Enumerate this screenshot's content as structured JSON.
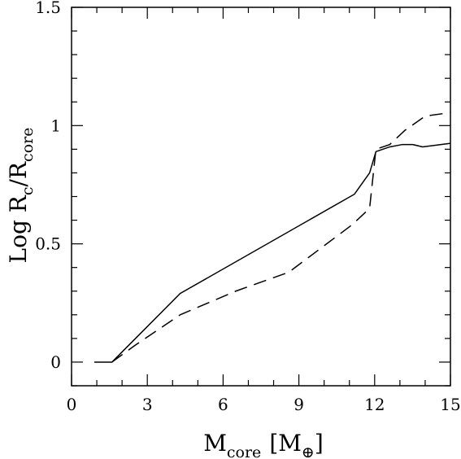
{
  "chart_data": {
    "type": "line",
    "xlabel": {
      "main": "M",
      "sub": "core",
      "unit_open": "[M",
      "unit_symbol": "⊕",
      "unit_close": "]"
    },
    "ylabel": {
      "prefix": "Log R",
      "sub1": "c",
      "mid": "/R",
      "sub2": "core"
    },
    "xlim": [
      0,
      15
    ],
    "ylim": [
      -0.1,
      1.5
    ],
    "xticks": [
      0,
      3,
      6,
      9,
      12,
      15
    ],
    "xtick_labels": [
      "0",
      "3",
      "6",
      "9",
      "12",
      "15"
    ],
    "yticks": [
      0,
      0.5,
      1,
      1.5
    ],
    "ytick_labels": [
      "0",
      "0.5",
      "1",
      "1.5"
    ],
    "x_minor_step": 1,
    "y_minor_step": 0.1,
    "grid": false,
    "series": [
      {
        "style": "solid",
        "x": [
          0.9,
          1.6,
          4.3,
          11.2,
          11.8,
          12.05,
          12.6,
          13.1,
          13.5,
          13.9,
          15.0
        ],
        "y": [
          0.0,
          0.0,
          0.29,
          0.71,
          0.8,
          0.89,
          0.91,
          0.92,
          0.92,
          0.91,
          0.925
        ]
      },
      {
        "style": "dashed",
        "x": [
          1.6,
          2.5,
          4.3,
          6.5,
          8.6,
          11.1,
          11.8,
          12.05,
          12.6,
          13.2,
          14.0,
          15.0
        ],
        "y": [
          0.0,
          0.07,
          0.2,
          0.3,
          0.38,
          0.58,
          0.65,
          0.9,
          0.92,
          0.98,
          1.04,
          1.055
        ]
      }
    ]
  }
}
